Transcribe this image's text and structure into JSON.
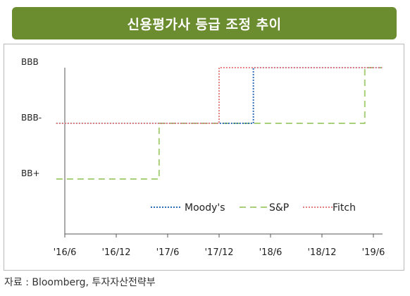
{
  "title": "신용평가사 등급 조정 추이",
  "source": "자료 : Bloomberg, 투자자산전략부",
  "chart_data": {
    "type": "line",
    "step": true,
    "categories": [
      "'16/6",
      "'16/12",
      "'17/6",
      "'17/12",
      "'18/6",
      "'18/12",
      "'19/6"
    ],
    "y_categories": [
      "BB+",
      "BBB-",
      "BBB"
    ],
    "x_range": [
      "2016-05",
      "2019-07"
    ],
    "legend_position": "bottom-right",
    "grid": false,
    "series": [
      {
        "name": "Moody's",
        "color": "#2e6bb5",
        "style": "dotted",
        "points": [
          {
            "x": "2016-05",
            "y": "BBB-"
          },
          {
            "x": "2018-04",
            "y": "BBB"
          },
          {
            "x": "2019-07",
            "y": "BBB"
          }
        ]
      },
      {
        "name": "S&P",
        "color": "#a8cf7a",
        "style": "dashed",
        "points": [
          {
            "x": "2016-05",
            "y": "BB+"
          },
          {
            "x": "2017-05",
            "y": "BBB-"
          },
          {
            "x": "2019-05",
            "y": "BBB"
          },
          {
            "x": "2019-07",
            "y": "BBB"
          }
        ]
      },
      {
        "name": "Fitch",
        "color": "#e08080",
        "style": "dotted",
        "points": [
          {
            "x": "2016-05",
            "y": "BBB-"
          },
          {
            "x": "2017-12",
            "y": "BBB"
          },
          {
            "x": "2019-07",
            "y": "BBB"
          }
        ]
      }
    ]
  }
}
